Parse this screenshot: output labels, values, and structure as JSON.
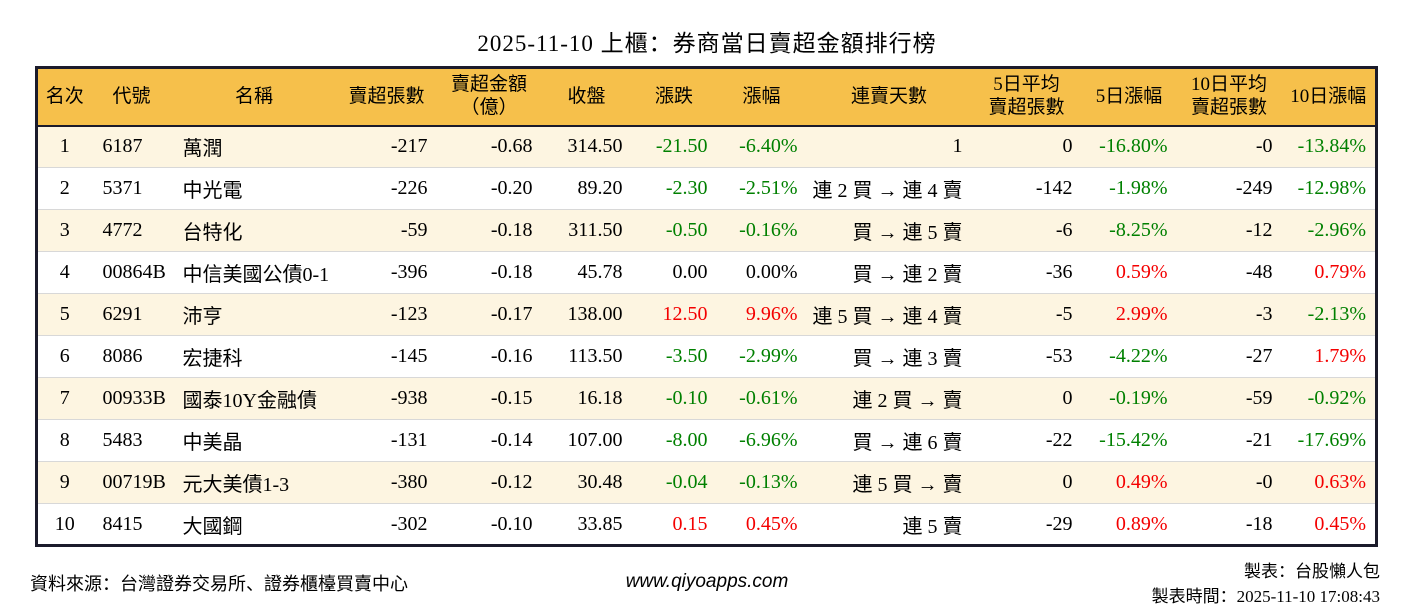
{
  "title": "2025-11-10 上櫃：券商當日賣超金額排行榜",
  "colors": {
    "up": "#f40000",
    "down": "#008000",
    "header_bg": "#f6c04b",
    "row_stripe": "#fdf5e1",
    "border": "#1b1b2b",
    "row_divider": "#d8d8d8"
  },
  "chart_data": {
    "type": "table",
    "title": "2025-11-10 上櫃：券商當日賣超金額排行榜",
    "columns": [
      {
        "key": "rank",
        "label": "名次",
        "align": "center"
      },
      {
        "key": "code",
        "label": "代號",
        "align": "left"
      },
      {
        "key": "name",
        "label": "名稱",
        "align": "left"
      },
      {
        "key": "sell_vol",
        "label": "賣超張數",
        "align": "right"
      },
      {
        "key": "sell_amt",
        "label": "賣超金額\n（億）",
        "align": "right"
      },
      {
        "key": "close",
        "label": "收盤",
        "align": "right"
      },
      {
        "key": "change",
        "label": "漲跌",
        "align": "right"
      },
      {
        "key": "change_pct",
        "label": "漲幅",
        "align": "right"
      },
      {
        "key": "streak",
        "label": "連賣天數",
        "align": "right"
      },
      {
        "key": "avg5",
        "label": "5日平均\n賣超張數",
        "align": "right"
      },
      {
        "key": "pct5",
        "label": "5日漲幅",
        "align": "right"
      },
      {
        "key": "avg10",
        "label": "10日平均\n賣超張數",
        "align": "right"
      },
      {
        "key": "pct10",
        "label": "10日漲幅",
        "align": "right"
      }
    ],
    "rows": [
      {
        "rank": "1",
        "code": "6187",
        "name": "萬潤",
        "sell_vol": "-217",
        "sell_amt": "-0.68",
        "close": "314.50",
        "change": {
          "t": "-21.50",
          "c": "down"
        },
        "change_pct": {
          "t": "-6.40%",
          "c": "down"
        },
        "streak": "1",
        "avg5": "0",
        "pct5": {
          "t": "-16.80%",
          "c": "down"
        },
        "avg10": "-0",
        "pct10": {
          "t": "-13.84%",
          "c": "down"
        }
      },
      {
        "rank": "2",
        "code": "5371",
        "name": "中光電",
        "sell_vol": "-226",
        "sell_amt": "-0.20",
        "close": "89.20",
        "change": {
          "t": "-2.30",
          "c": "down"
        },
        "change_pct": {
          "t": "-2.51%",
          "c": "down"
        },
        "streak": "連 2 買 → 連 4 賣",
        "avg5": "-142",
        "pct5": {
          "t": "-1.98%",
          "c": "down"
        },
        "avg10": "-249",
        "pct10": {
          "t": "-12.98%",
          "c": "down"
        }
      },
      {
        "rank": "3",
        "code": "4772",
        "name": "台特化",
        "sell_vol": "-59",
        "sell_amt": "-0.18",
        "close": "311.50",
        "change": {
          "t": "-0.50",
          "c": "down"
        },
        "change_pct": {
          "t": "-0.16%",
          "c": "down"
        },
        "streak": "買 → 連 5 賣",
        "avg5": "-6",
        "pct5": {
          "t": "-8.25%",
          "c": "down"
        },
        "avg10": "-12",
        "pct10": {
          "t": "-2.96%",
          "c": "down"
        }
      },
      {
        "rank": "4",
        "code": "00864B",
        "name": "中信美國公債0-1",
        "sell_vol": "-396",
        "sell_amt": "-0.18",
        "close": "45.78",
        "change": {
          "t": "0.00",
          "c": ""
        },
        "change_pct": {
          "t": "0.00%",
          "c": ""
        },
        "streak": "買 → 連 2 賣",
        "avg5": "-36",
        "pct5": {
          "t": "0.59%",
          "c": "up"
        },
        "avg10": "-48",
        "pct10": {
          "t": "0.79%",
          "c": "up"
        }
      },
      {
        "rank": "5",
        "code": "6291",
        "name": "沛亨",
        "sell_vol": "-123",
        "sell_amt": "-0.17",
        "close": "138.00",
        "change": {
          "t": "12.50",
          "c": "up"
        },
        "change_pct": {
          "t": "9.96%",
          "c": "up"
        },
        "streak": "連 5 買 → 連 4 賣",
        "avg5": "-5",
        "pct5": {
          "t": "2.99%",
          "c": "up"
        },
        "avg10": "-3",
        "pct10": {
          "t": "-2.13%",
          "c": "down"
        }
      },
      {
        "rank": "6",
        "code": "8086",
        "name": "宏捷科",
        "sell_vol": "-145",
        "sell_amt": "-0.16",
        "close": "113.50",
        "change": {
          "t": "-3.50",
          "c": "down"
        },
        "change_pct": {
          "t": "-2.99%",
          "c": "down"
        },
        "streak": "買 → 連 3 賣",
        "avg5": "-53",
        "pct5": {
          "t": "-4.22%",
          "c": "down"
        },
        "avg10": "-27",
        "pct10": {
          "t": "1.79%",
          "c": "up"
        }
      },
      {
        "rank": "7",
        "code": "00933B",
        "name": "國泰10Y金融債",
        "sell_vol": "-938",
        "sell_amt": "-0.15",
        "close": "16.18",
        "change": {
          "t": "-0.10",
          "c": "down"
        },
        "change_pct": {
          "t": "-0.61%",
          "c": "down"
        },
        "streak": "連 2 買 → 賣",
        "avg5": "0",
        "pct5": {
          "t": "-0.19%",
          "c": "down"
        },
        "avg10": "-59",
        "pct10": {
          "t": "-0.92%",
          "c": "down"
        }
      },
      {
        "rank": "8",
        "code": "5483",
        "name": "中美晶",
        "sell_vol": "-131",
        "sell_amt": "-0.14",
        "close": "107.00",
        "change": {
          "t": "-8.00",
          "c": "down"
        },
        "change_pct": {
          "t": "-6.96%",
          "c": "down"
        },
        "streak": "買 → 連 6 賣",
        "avg5": "-22",
        "pct5": {
          "t": "-15.42%",
          "c": "down"
        },
        "avg10": "-21",
        "pct10": {
          "t": "-17.69%",
          "c": "down"
        }
      },
      {
        "rank": "9",
        "code": "00719B",
        "name": "元大美債1-3",
        "sell_vol": "-380",
        "sell_amt": "-0.12",
        "close": "30.48",
        "change": {
          "t": "-0.04",
          "c": "down"
        },
        "change_pct": {
          "t": "-0.13%",
          "c": "down"
        },
        "streak": "連 5 買 → 賣",
        "avg5": "0",
        "pct5": {
          "t": "0.49%",
          "c": "up"
        },
        "avg10": "-0",
        "pct10": {
          "t": "0.63%",
          "c": "up"
        }
      },
      {
        "rank": "10",
        "code": "8415",
        "name": "大國鋼",
        "sell_vol": "-302",
        "sell_amt": "-0.10",
        "close": "33.85",
        "change": {
          "t": "0.15",
          "c": "up"
        },
        "change_pct": {
          "t": "0.45%",
          "c": "up"
        },
        "streak": "連 5 賣",
        "avg5": "-29",
        "pct5": {
          "t": "0.89%",
          "c": "up"
        },
        "avg10": "-18",
        "pct10": {
          "t": "0.45%",
          "c": "up"
        }
      }
    ]
  },
  "footer": {
    "source": "資料來源：台灣證券交易所、證券櫃檯買賣中心",
    "website": "www.qiyoapps.com",
    "author": "製表：台股懶人包",
    "generated": "製表時間：2025-11-10 17:08:43"
  }
}
